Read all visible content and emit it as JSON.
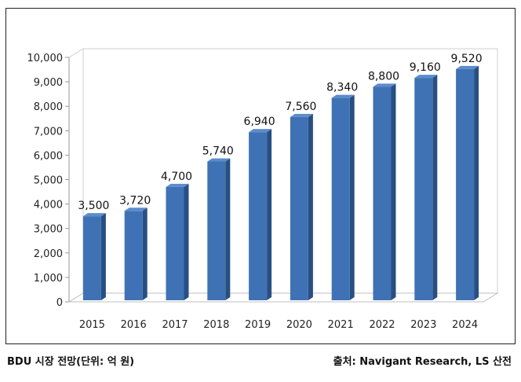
{
  "chart_data": {
    "type": "bar",
    "categories": [
      "2015",
      "2016",
      "2017",
      "2018",
      "2019",
      "2020",
      "2021",
      "2022",
      "2023",
      "2024"
    ],
    "values": [
      3500,
      3720,
      4700,
      5740,
      6940,
      7560,
      8340,
      8800,
      9160,
      9520
    ],
    "value_labels": [
      "3,500",
      "3,720",
      "4,700",
      "5,740",
      "6,940",
      "7,560",
      "8,340",
      "8,800",
      "9,160",
      "9,520"
    ],
    "yticks": [
      0,
      1000,
      2000,
      3000,
      4000,
      5000,
      6000,
      7000,
      8000,
      9000,
      10000
    ],
    "ytick_labels": [
      "0",
      "1,000",
      "2,000",
      "3,000",
      "4,000",
      "5,000",
      "6,000",
      "7,000",
      "8,000",
      "9,000",
      "10,000"
    ],
    "ylim": [
      0,
      10000
    ],
    "grid": false,
    "bar_color": "#3f72b4"
  },
  "caption": {
    "left": "BDU 시장 전망(단위: 억 원)",
    "right": "출처: Navigant Research, LS 산전"
  }
}
